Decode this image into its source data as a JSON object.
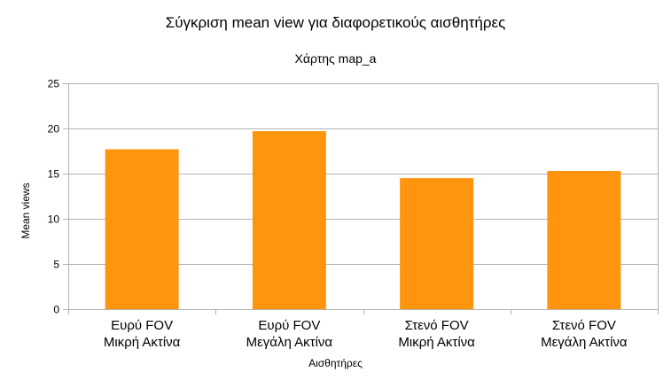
{
  "chart_data": {
    "type": "bar",
    "title": "Σύγκριση mean view για διαφορετικούς αισθητήρες",
    "subtitle": "Χάρτης map_a",
    "xlabel": "Αισθητήρες",
    "ylabel": "Mean views",
    "categories": [
      [
        "Ευρύ FOV",
        "Μικρή Ακτίνα"
      ],
      [
        "Ευρύ FOV",
        "Μεγάλη Ακτίνα"
      ],
      [
        "Στενό FOV",
        " Μικρή Ακτίνα"
      ],
      [
        "Στενό FOV",
        " Μεγάλη Ακτίνα"
      ]
    ],
    "values": [
      17.7,
      19.7,
      14.5,
      15.3
    ],
    "ylim": [
      0,
      25
    ],
    "yticks": [
      0,
      5,
      10,
      15,
      20,
      25
    ],
    "grid": true,
    "legend": "none",
    "colors": {
      "bar": "#FF950E",
      "grid": "#B3B3B3"
    }
  }
}
